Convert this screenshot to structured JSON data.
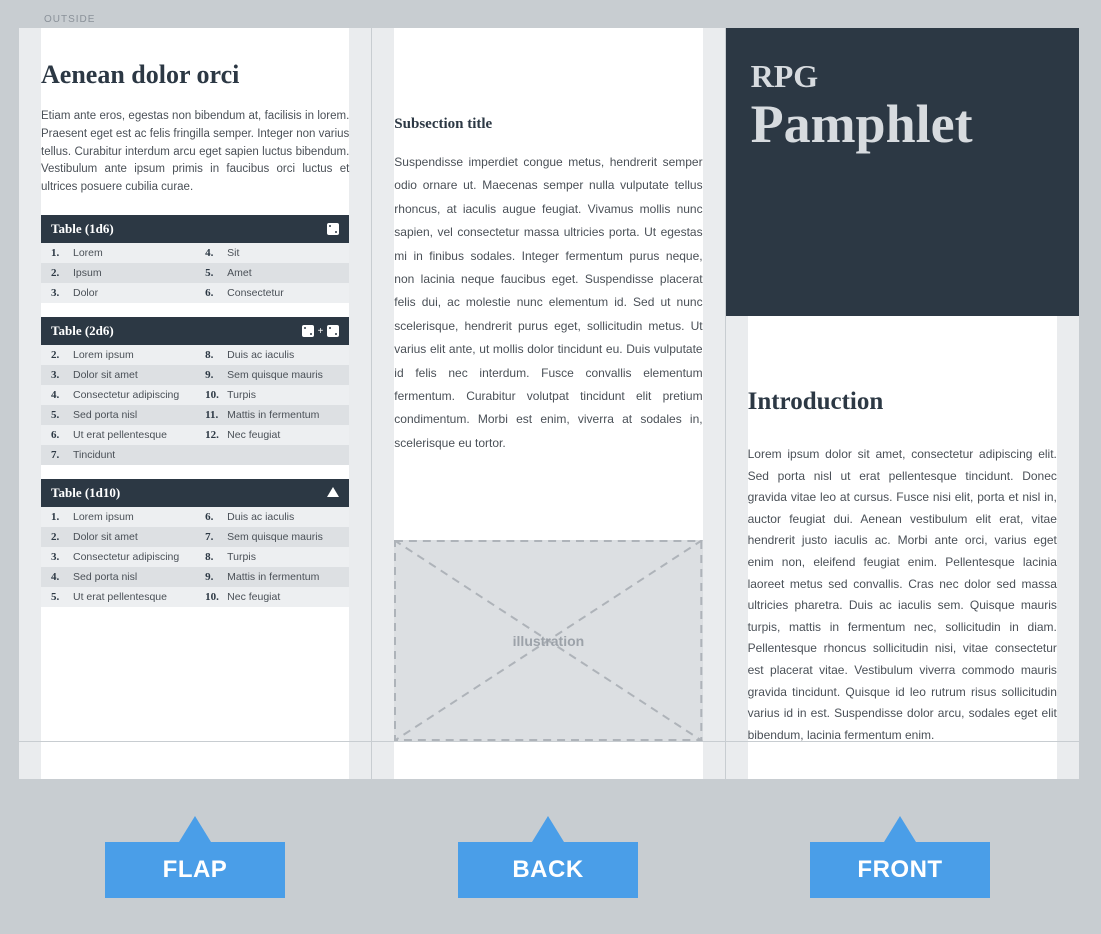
{
  "outside_label": "OUTSIDE",
  "colors": {
    "page_bg": "#c8cdd1",
    "panel_margin_bg": "#eaecee",
    "panel_bg": "#ffffff",
    "dark": "#2c3844",
    "text": "#4a5057",
    "row_odd": "#edeff1",
    "row_even": "#dde0e3",
    "illus_bg": "#dcdfe2",
    "illus_text": "#9ca2a9",
    "label_blue": "#4a9ee8",
    "hero_text": "#d7dbdf"
  },
  "flap": {
    "title": "Aenean dolor orci",
    "text": "Etiam ante eros, egestas non bibendum at, facilisis in lorem. Praesent eget est ac felis fringilla semper. Integer non varius tellus. Curabitur interdum arcu eget sapien luctus bibendum. Vestibulum ante ipsum primis in faucibus orci luctus et ultrices posuere cubilia curae.",
    "tables": [
      {
        "title": "Table (1d6)",
        "dice": "d6",
        "left": [
          {
            "n": "1.",
            "v": "Lorem"
          },
          {
            "n": "2.",
            "v": "Ipsum"
          },
          {
            "n": "3.",
            "v": "Dolor"
          }
        ],
        "right": [
          {
            "n": "4.",
            "v": "Sit"
          },
          {
            "n": "5.",
            "v": "Amet"
          },
          {
            "n": "6.",
            "v": "Consectetur"
          }
        ]
      },
      {
        "title": "Table (2d6)",
        "dice": "2d6",
        "left": [
          {
            "n": "2.",
            "v": "Lorem ipsum"
          },
          {
            "n": "3.",
            "v": "Dolor sit amet"
          },
          {
            "n": "4.",
            "v": "Consectetur adipiscing"
          },
          {
            "n": "5.",
            "v": "Sed porta nisl"
          },
          {
            "n": "6.",
            "v": "Ut erat pellentesque"
          },
          {
            "n": "7.",
            "v": "Tincidunt"
          }
        ],
        "right": [
          {
            "n": "8.",
            "v": "Duis ac iaculis"
          },
          {
            "n": "9.",
            "v": "Sem quisque mauris"
          },
          {
            "n": "10.",
            "v": "Turpis"
          },
          {
            "n": "11.",
            "v": "Mattis in fermentum"
          },
          {
            "n": "12.",
            "v": "Nec feugiat"
          }
        ]
      },
      {
        "title": "Table (1d10)",
        "dice": "d10",
        "left": [
          {
            "n": "1.",
            "v": "Lorem ipsum"
          },
          {
            "n": "2.",
            "v": "Dolor sit amet"
          },
          {
            "n": "3.",
            "v": "Consectetur adipiscing"
          },
          {
            "n": "4.",
            "v": "Sed porta nisl"
          },
          {
            "n": "5.",
            "v": "Ut erat pellentesque"
          }
        ],
        "right": [
          {
            "n": "6.",
            "v": "Duis ac iaculis"
          },
          {
            "n": "7.",
            "v": "Sem quisque mauris"
          },
          {
            "n": "8.",
            "v": "Turpis"
          },
          {
            "n": "9.",
            "v": "Mattis in fermentum"
          },
          {
            "n": "10.",
            "v": "Nec feugiat"
          }
        ]
      }
    ]
  },
  "back": {
    "subtitle": "Subsection title",
    "text": "Suspendisse imperdiet congue metus, hendrerit semper odio ornare ut. Maecenas semper nulla vulputate tellus rhoncus, at iaculis augue feugiat. Vivamus mollis nunc sapien, vel consectetur massa ultricies porta. Ut egestas mi in finibus sodales. Integer fermentum purus neque, non lacinia neque faucibus eget. Suspendisse placerat felis dui, ac molestie nunc elementum id. Sed ut nunc scelerisque, hendrerit purus eget, sollicitudin metus. Ut varius elit ante, ut mollis dolor tincidunt eu. Duis vulputate id felis nec interdum. Fusce convallis elementum fermentum. Curabitur volutpat tincidunt elit pretium condimentum. Morbi est enim, viverra at sodales in, scelerisque eu tortor.",
    "illustration_label": "illustration"
  },
  "front": {
    "hero_sub": "RPG",
    "hero_main": "Pamphlet",
    "intro_title": "Introduction",
    "intro_text": "Lorem ipsum dolor sit amet, consectetur adipiscing elit. Sed porta nisl ut erat pellentesque tincidunt. Donec gravida vitae leo at cursus. Fusce nisi elit, porta et nisl in, auctor feugiat dui. Aenean vestibulum elit erat, vitae hendrerit justo iaculis ac. Morbi ante orci, varius eget enim non, eleifend feugiat enim. Pellentesque lacinia laoreet metus sed convallis. Cras nec dolor sed massa ultricies pharetra. Duis ac iaculis sem. Quisque mauris turpis, mattis in fermentum nec, sollicitudin in diam. Pellentesque rhoncus sollicitudin nisi, vitae consectetur est placerat vitae. Vestibulum viverra commodo mauris gravida tincidunt. Quisque id leo rutrum risus sollicitudin varius id in est. Suspendisse dolor arcu, sodales eget elit bibendum, lacinia fermentum enim."
  },
  "labels": {
    "flap": "FLAP",
    "back": "BACK",
    "front": "FRONT"
  }
}
